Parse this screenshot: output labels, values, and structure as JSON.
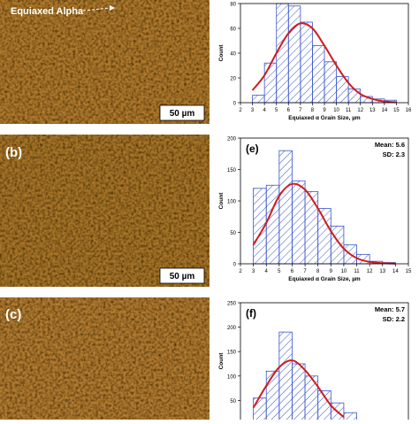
{
  "micrographs": [
    {
      "panel": "",
      "annotation": "Equiaxed Alpha",
      "scale_bar": "50 µm"
    },
    {
      "panel": "(b)",
      "annotation": "",
      "scale_bar": "50 µm"
    },
    {
      "panel": "(c)",
      "annotation": "",
      "scale_bar": ""
    }
  ],
  "colors": {
    "bar": "#3a55c8",
    "fit": "#d01c1c",
    "micrograph": "#b07a2e"
  },
  "chart_data": [
    {
      "type": "bar",
      "panel": "",
      "xlabel": "Equiaxed α Grain Size, µm",
      "ylabel": "Count",
      "bin_width": 1,
      "x": [
        3,
        4,
        5,
        6,
        7,
        8,
        9,
        10,
        11,
        12,
        13,
        14
      ],
      "values": [
        6,
        32,
        80,
        78,
        65,
        46,
        33,
        21,
        11,
        5,
        3,
        2
      ],
      "fit": [
        10,
        22,
        40,
        56,
        64,
        60,
        46,
        30,
        16,
        7,
        3,
        1,
        0.3
      ],
      "fit_x": [
        3,
        4,
        5,
        6,
        7,
        8,
        9,
        10,
        11,
        12,
        13,
        14,
        15
      ],
      "xlim": [
        2,
        16
      ],
      "ylim": [
        0,
        80
      ],
      "xticks": [
        2,
        3,
        4,
        5,
        6,
        7,
        8,
        9,
        10,
        11,
        12,
        13,
        14,
        15,
        16
      ],
      "yticks": [
        0,
        20,
        40,
        60,
        80
      ],
      "stats": []
    },
    {
      "type": "bar",
      "panel": "(e)",
      "xlabel": "Equiaxed α Grain Size, µm",
      "ylabel": "Count",
      "bin_width": 1,
      "x": [
        3,
        4,
        5,
        6,
        7,
        8,
        9,
        10,
        11,
        12,
        13
      ],
      "values": [
        120,
        125,
        180,
        132,
        115,
        88,
        60,
        30,
        15,
        4,
        2
      ],
      "fit": [
        30,
        65,
        108,
        127,
        118,
        88,
        52,
        24,
        9,
        3,
        1,
        0.2
      ],
      "fit_x": [
        3,
        4,
        5,
        6,
        7,
        8,
        9,
        10,
        11,
        12,
        13,
        14
      ],
      "xlim": [
        2,
        15
      ],
      "ylim": [
        0,
        200
      ],
      "xticks": [
        2,
        3,
        4,
        5,
        6,
        7,
        8,
        9,
        10,
        11,
        12,
        13,
        14,
        15
      ],
      "yticks": [
        0,
        50,
        100,
        150,
        200
      ],
      "stats": [
        "Mean: 5.6",
        "SD: 2.3"
      ]
    },
    {
      "type": "bar",
      "panel": "(f)",
      "xlabel": "",
      "ylabel": "Count",
      "bin_width": 1,
      "x": [
        3,
        4,
        5,
        6,
        7,
        8,
        9,
        10
      ],
      "values": [
        55,
        110,
        190,
        125,
        100,
        70,
        45,
        25
      ],
      "fit": [
        35,
        80,
        118,
        132,
        112,
        78,
        40,
        16
      ],
      "fit_x": [
        3,
        4,
        5,
        6,
        7,
        8,
        9,
        10
      ],
      "xlim": [
        2,
        15
      ],
      "ylim": [
        0,
        250
      ],
      "xticks": [],
      "yticks": [
        0,
        50,
        100,
        150,
        200,
        250
      ],
      "stats": [
        "Mean: 5.7",
        "SD: 2.2"
      ]
    }
  ]
}
